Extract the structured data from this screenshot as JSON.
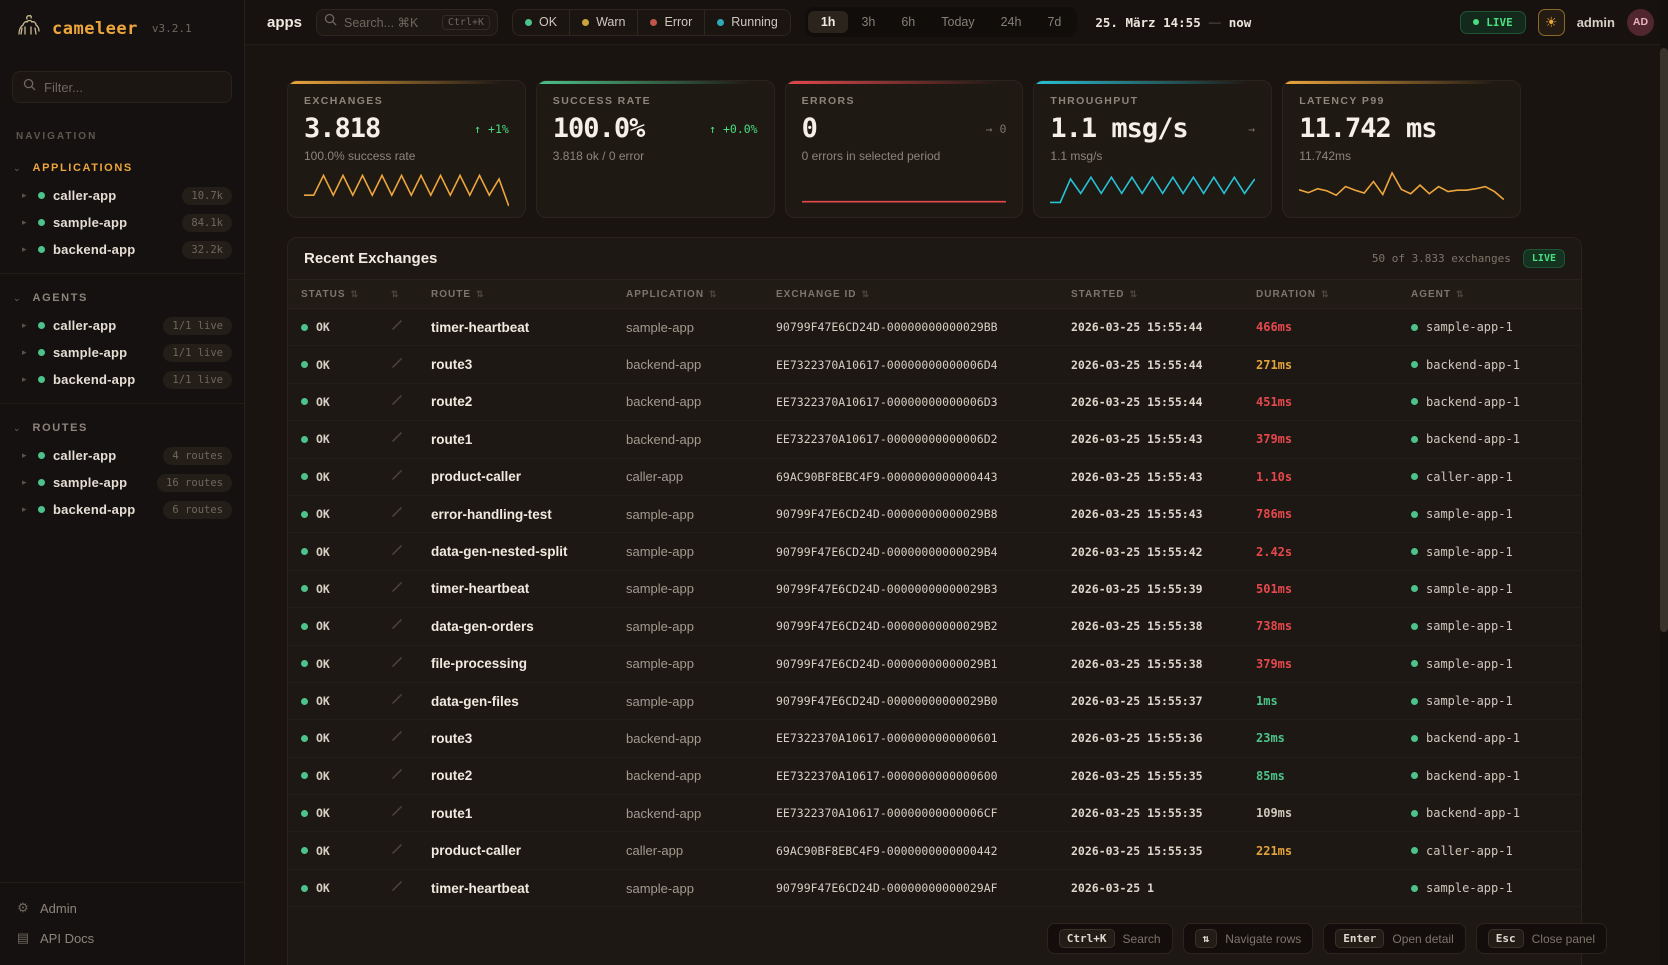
{
  "brand": {
    "name": "cameleer",
    "version": "v3.2.1"
  },
  "sidebar": {
    "filter_placeholder": "Filter...",
    "nav_label": "NAVIGATION",
    "sections": [
      {
        "id": "applications",
        "label": "APPLICATIONS",
        "accent": true,
        "items": [
          {
            "name": "caller-app",
            "badge": "10.7k"
          },
          {
            "name": "sample-app",
            "badge": "84.1k"
          },
          {
            "name": "backend-app",
            "badge": "32.2k"
          }
        ]
      },
      {
        "id": "agents",
        "label": "AGENTS",
        "accent": false,
        "items": [
          {
            "name": "caller-app",
            "badge": "1/1 live"
          },
          {
            "name": "sample-app",
            "badge": "1/1 live"
          },
          {
            "name": "backend-app",
            "badge": "1/1 live"
          }
        ]
      },
      {
        "id": "routes",
        "label": "ROUTES",
        "accent": false,
        "items": [
          {
            "name": "caller-app",
            "badge": "4 routes"
          },
          {
            "name": "sample-app",
            "badge": "16 routes"
          },
          {
            "name": "backend-app",
            "badge": "6 routes"
          }
        ]
      }
    ],
    "footer": [
      {
        "id": "admin",
        "label": "Admin",
        "icon": "gear-icon",
        "glyph": "⚙"
      },
      {
        "id": "api-docs",
        "label": "API Docs",
        "icon": "docs-icon",
        "glyph": "▤"
      }
    ]
  },
  "topbar": {
    "context": "apps",
    "search": {
      "placeholder": "Search... ⌘K",
      "shortcut": "Ctrl+K"
    },
    "status_filters": [
      {
        "label": "OK",
        "color": "#4cc38a"
      },
      {
        "label": "Warn",
        "color": "#caa53d"
      },
      {
        "label": "Error",
        "color": "#c0564a"
      },
      {
        "label": "Running",
        "color": "#2fa8ba"
      }
    ],
    "time_ranges": [
      {
        "label": "1h",
        "active": true
      },
      {
        "label": "3h",
        "active": false
      },
      {
        "label": "6h",
        "active": false
      },
      {
        "label": "Today",
        "active": false
      },
      {
        "label": "24h",
        "active": false
      },
      {
        "label": "7d",
        "active": false
      }
    ],
    "date_from": "25. März 14:55",
    "date_sep": "—",
    "date_to": "now",
    "live_label": "LIVE",
    "theme_icon": "☀",
    "user": "admin",
    "avatar": "AD"
  },
  "cards": [
    {
      "title": "EXCHANGES",
      "value": "3.818",
      "delta": "↑ +1%",
      "delta_color": "green",
      "subtitle": "100.0% success rate",
      "accent": "#eda63c",
      "spark": {
        "color": "#eda63c",
        "values": [
          7,
          7,
          1.5,
          7,
          1.5,
          7,
          1.5,
          7,
          1.5,
          7,
          1.5,
          7,
          1.5,
          7,
          1.5,
          7,
          1.5,
          7,
          1.5,
          7,
          2.5,
          10
        ]
      }
    },
    {
      "title": "SUCCESS RATE",
      "value": "100.0%",
      "delta": "↑ +0.0%",
      "delta_color": "green",
      "subtitle": "3.818 ok / 0 error",
      "accent": "#4cc38a",
      "spark": null
    },
    {
      "title": "ERRORS",
      "value": "0",
      "delta": "→ 0",
      "delta_color": "gray",
      "subtitle": "0 errors in selected period",
      "accent": "#e5484d",
      "spark": {
        "color": "#e5484d",
        "values": [
          8.8,
          8.8
        ]
      }
    },
    {
      "title": "THROUGHPUT",
      "value": "1.1 msg/s",
      "delta": "→",
      "delta_color": "gray",
      "subtitle": "1.1 msg/s",
      "accent": "#27c2d6",
      "spark": {
        "color": "#27c2d6",
        "values": [
          9,
          9,
          2.5,
          6.5,
          2,
          6.5,
          2,
          6.5,
          2,
          6.5,
          2,
          6.5,
          2,
          6.5,
          2,
          6.5,
          2,
          6.5,
          2,
          6.5,
          2.5
        ]
      }
    },
    {
      "title": "LATENCY P99",
      "value": "11.742 ms",
      "delta": "",
      "delta_color": "gray",
      "subtitle": "11.742ms",
      "accent": "#eda63c",
      "spark": {
        "color": "#eda63c",
        "values": [
          5.5,
          6.3,
          5.2,
          5.8,
          7,
          4.6,
          5.6,
          6.4,
          3.2,
          6.8,
          0.8,
          5.4,
          6.6,
          4.2,
          6.6,
          4.6,
          6,
          5.6,
          5.6,
          5.2,
          4.6,
          6,
          8.2
        ]
      }
    }
  ],
  "table": {
    "title": "Recent Exchanges",
    "summary": "50 of 3.833 exchanges",
    "live_label": "LIVE",
    "columns": [
      "STATUS",
      "",
      "ROUTE",
      "APPLICATION",
      "EXCHANGE ID",
      "STARTED",
      "DURATION",
      "AGENT"
    ],
    "duration_colors": {
      "green": "#4cc38a",
      "orange": "#e2a33b",
      "red": "#e5484d",
      "neutral": "#cfc7bd"
    },
    "rows": [
      {
        "status": "OK",
        "route": "timer-heartbeat",
        "app": "sample-app",
        "id": "90799F47E6CD24D-00000000000029BB",
        "started": "2026-03-25 15:55:44",
        "duration": "466ms",
        "duration_color": "red",
        "agent": "sample-app-1"
      },
      {
        "status": "OK",
        "route": "route3",
        "app": "backend-app",
        "id": "EE7322370A10617-00000000000006D4",
        "started": "2026-03-25 15:55:44",
        "duration": "271ms",
        "duration_color": "orange",
        "agent": "backend-app-1"
      },
      {
        "status": "OK",
        "route": "route2",
        "app": "backend-app",
        "id": "EE7322370A10617-00000000000006D3",
        "started": "2026-03-25 15:55:44",
        "duration": "451ms",
        "duration_color": "red",
        "agent": "backend-app-1"
      },
      {
        "status": "OK",
        "route": "route1",
        "app": "backend-app",
        "id": "EE7322370A10617-00000000000006D2",
        "started": "2026-03-25 15:55:43",
        "duration": "379ms",
        "duration_color": "red",
        "agent": "backend-app-1"
      },
      {
        "status": "OK",
        "route": "product-caller",
        "app": "caller-app",
        "id": "69AC90BF8EBC4F9-0000000000000443",
        "started": "2026-03-25 15:55:43",
        "duration": "1.10s",
        "duration_color": "red",
        "agent": "caller-app-1"
      },
      {
        "status": "OK",
        "route": "error-handling-test",
        "app": "sample-app",
        "id": "90799F47E6CD24D-00000000000029B8",
        "started": "2026-03-25 15:55:43",
        "duration": "786ms",
        "duration_color": "red",
        "agent": "sample-app-1"
      },
      {
        "status": "OK",
        "route": "data-gen-nested-split",
        "app": "sample-app",
        "id": "90799F47E6CD24D-00000000000029B4",
        "started": "2026-03-25 15:55:42",
        "duration": "2.42s",
        "duration_color": "red",
        "agent": "sample-app-1"
      },
      {
        "status": "OK",
        "route": "timer-heartbeat",
        "app": "sample-app",
        "id": "90799F47E6CD24D-00000000000029B3",
        "started": "2026-03-25 15:55:39",
        "duration": "501ms",
        "duration_color": "red",
        "agent": "sample-app-1"
      },
      {
        "status": "OK",
        "route": "data-gen-orders",
        "app": "sample-app",
        "id": "90799F47E6CD24D-00000000000029B2",
        "started": "2026-03-25 15:55:38",
        "duration": "738ms",
        "duration_color": "red",
        "agent": "sample-app-1"
      },
      {
        "status": "OK",
        "route": "file-processing",
        "app": "sample-app",
        "id": "90799F47E6CD24D-00000000000029B1",
        "started": "2026-03-25 15:55:38",
        "duration": "379ms",
        "duration_color": "red",
        "agent": "sample-app-1"
      },
      {
        "status": "OK",
        "route": "data-gen-files",
        "app": "sample-app",
        "id": "90799F47E6CD24D-00000000000029B0",
        "started": "2026-03-25 15:55:37",
        "duration": "1ms",
        "duration_color": "green",
        "agent": "sample-app-1"
      },
      {
        "status": "OK",
        "route": "route3",
        "app": "backend-app",
        "id": "EE7322370A10617-0000000000000601",
        "started": "2026-03-25 15:55:36",
        "duration": "23ms",
        "duration_color": "green",
        "agent": "backend-app-1"
      },
      {
        "status": "OK",
        "route": "route2",
        "app": "backend-app",
        "id": "EE7322370A10617-0000000000000600",
        "started": "2026-03-25 15:55:35",
        "duration": "85ms",
        "duration_color": "green",
        "agent": "backend-app-1"
      },
      {
        "status": "OK",
        "route": "route1",
        "app": "backend-app",
        "id": "EE7322370A10617-00000000000006CF",
        "started": "2026-03-25 15:55:35",
        "duration": "109ms",
        "duration_color": "neutral",
        "agent": "backend-app-1"
      },
      {
        "status": "OK",
        "route": "product-caller",
        "app": "caller-app",
        "id": "69AC90BF8EBC4F9-0000000000000442",
        "started": "2026-03-25 15:55:35",
        "duration": "221ms",
        "duration_color": "orange",
        "agent": "caller-app-1"
      },
      {
        "status": "OK",
        "route": "timer-heartbeat",
        "app": "sample-app",
        "id": "90799F47E6CD24D-00000000000029AF",
        "started": "2026-03-25 1",
        "duration": "",
        "duration_color": "neutral",
        "agent": "sample-app-1"
      }
    ]
  },
  "hints": [
    {
      "key": "Ctrl+K",
      "label": "Search"
    },
    {
      "key": "⇅",
      "label": "Navigate rows"
    },
    {
      "key": "Enter",
      "label": "Open detail"
    },
    {
      "key": "Esc",
      "label": "Close panel"
    }
  ]
}
